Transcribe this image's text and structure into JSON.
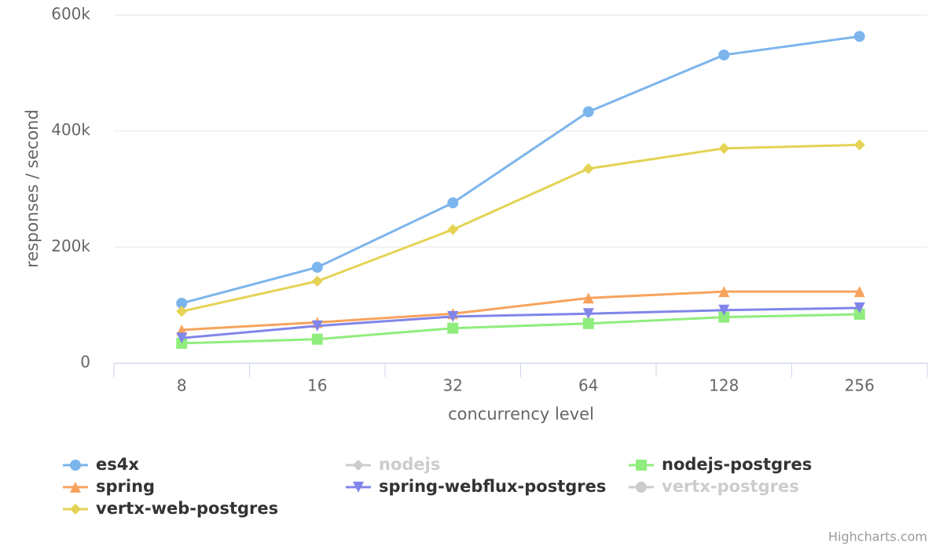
{
  "chart_data": {
    "type": "line",
    "y_axis_label": "responses / second",
    "x_axis_label": "concurrency level",
    "credits": "Highcharts.com",
    "categories": [
      "8",
      "16",
      "32",
      "64",
      "128",
      "256"
    ],
    "ylim": [
      0,
      600000
    ],
    "yticks": [
      0,
      {
        "value": 200000,
        "label": "200k"
      },
      {
        "value": 400000,
        "label": "400k"
      },
      {
        "value": 600000,
        "label": "600k"
      }
    ],
    "grid": true,
    "series": [
      {
        "name": "es4x",
        "color": "#7cb5ec",
        "marker": "circle",
        "visible": true,
        "values": [
          103000,
          165000,
          276000,
          433000,
          531000,
          563000
        ]
      },
      {
        "name": "nodejs",
        "color": "#434348",
        "marker": "diamond",
        "visible": false,
        "values": [
          null,
          null,
          null,
          null,
          null,
          null
        ]
      },
      {
        "name": "nodejs-postgres",
        "color": "#90ed7d",
        "marker": "square",
        "visible": true,
        "values": [
          34000,
          41000,
          60000,
          68000,
          79000,
          84000
        ]
      },
      {
        "name": "spring",
        "color": "#f7a35c",
        "marker": "triangle",
        "visible": true,
        "values": [
          57000,
          70000,
          85000,
          112000,
          123000,
          123000
        ]
      },
      {
        "name": "spring-webflux-postgres",
        "color": "#8085e9",
        "marker": "triangle-down",
        "visible": true,
        "values": [
          43000,
          64000,
          80000,
          85000,
          91000,
          95000
        ]
      },
      {
        "name": "vertx-postgres",
        "color": "#f15c80",
        "marker": "circle",
        "visible": false,
        "values": [
          null,
          null,
          null,
          null,
          null,
          null
        ]
      },
      {
        "name": "vertx-web-postgres",
        "color": "#e4d354",
        "marker": "diamond",
        "visible": true,
        "values": [
          89000,
          141000,
          230000,
          335000,
          370000,
          376000
        ]
      }
    ]
  }
}
